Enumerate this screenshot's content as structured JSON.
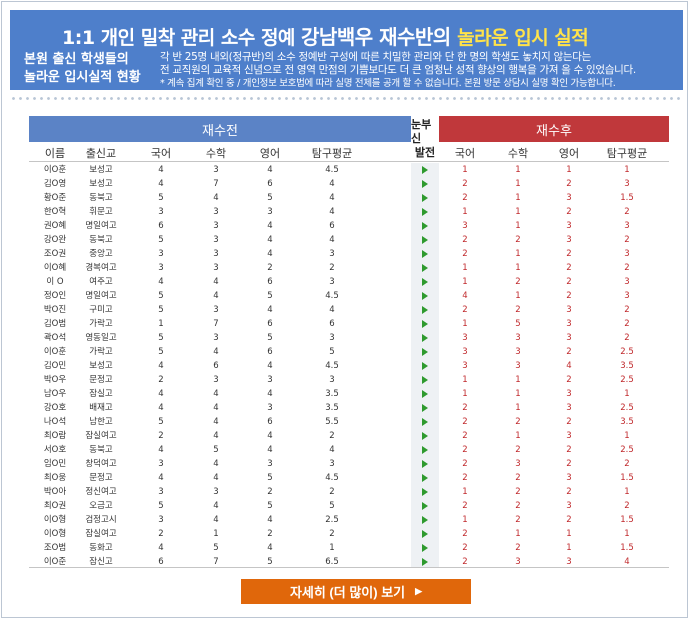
{
  "banner": {
    "title_prefix": "1:1 개인 밀착 관리 소수 정예 ",
    "title_brand": "강남백우 재수반의 ",
    "title_highlight": "놀라운 입시 실적",
    "subtitle_line1": "본원 출신 학생들의",
    "subtitle_line2": "놀라운 입시실적 현황",
    "desc_line1": "각 반 25명 내외(정규반)의 소수 정예반 구성에 따른 치밀한 관리와 단 한 명의 학생도 놓치지 않는다는",
    "desc_line2": "전 교직원의 교육적 신념으로 전 영역 만점의 기쁨보다도 더 큰 엄청난 성적 향상의 행복을 가져 올 수 있었습니다.",
    "desc_line3": "* 계속 집계 확인 중 / 개인정보 보호법에 따라 실명 전체를 공개 할 수 없습니다. 본원 방문 상담시 실명 확인 가능합니다."
  },
  "table": {
    "group_before": "재수전",
    "group_mid_line1": "눈부신",
    "group_mid_line2": "발전",
    "group_after": "재수후",
    "columns": [
      "이름",
      "출신교",
      "국어",
      "수학",
      "영어",
      "탐구평균",
      "국어",
      "수학",
      "영어",
      "탐구평균"
    ],
    "rows": [
      [
        "이O훈",
        "보성고",
        "4",
        "3",
        "4",
        "4.5",
        "1",
        "1",
        "1",
        "1"
      ],
      [
        "김O영",
        "보성고",
        "4",
        "7",
        "6",
        "4",
        "2",
        "1",
        "2",
        "3"
      ],
      [
        "황O준",
        "동북고",
        "5",
        "4",
        "5",
        "4",
        "2",
        "1",
        "3",
        "1.5"
      ],
      [
        "한O혁",
        "휘문고",
        "3",
        "3",
        "3",
        "4",
        "1",
        "1",
        "2",
        "2"
      ],
      [
        "권O혜",
        "명일여고",
        "6",
        "3",
        "4",
        "6",
        "3",
        "1",
        "3",
        "3"
      ],
      [
        "강O완",
        "동북고",
        "5",
        "3",
        "4",
        "4",
        "2",
        "2",
        "3",
        "2"
      ],
      [
        "조O권",
        "중앙고",
        "3",
        "3",
        "4",
        "3",
        "2",
        "1",
        "2",
        "3"
      ],
      [
        "이O혜",
        "경복여고",
        "3",
        "3",
        "2",
        "2",
        "1",
        "1",
        "2",
        "2"
      ],
      [
        "이 O",
        "여주고",
        "4",
        "4",
        "6",
        "3",
        "1",
        "2",
        "2",
        "3"
      ],
      [
        "정O인",
        "명일여고",
        "5",
        "4",
        "5",
        "4.5",
        "4",
        "1",
        "2",
        "3"
      ],
      [
        "박O진",
        "구미고",
        "5",
        "3",
        "4",
        "4",
        "2",
        "2",
        "3",
        "2"
      ],
      [
        "김O범",
        "가락고",
        "1",
        "7",
        "6",
        "6",
        "1",
        "5",
        "3",
        "2"
      ],
      [
        "곽O석",
        "영동일고",
        "5",
        "3",
        "5",
        "3",
        "3",
        "3",
        "3",
        "2"
      ],
      [
        "이O훈",
        "가락고",
        "5",
        "4",
        "6",
        "5",
        "3",
        "3",
        "2",
        "2.5"
      ],
      [
        "김O민",
        "보성고",
        "4",
        "6",
        "4",
        "4.5",
        "3",
        "3",
        "4",
        "3.5"
      ],
      [
        "박O우",
        "문정고",
        "2",
        "3",
        "3",
        "3",
        "1",
        "1",
        "2",
        "2.5"
      ],
      [
        "남O우",
        "잠실고",
        "4",
        "4",
        "4",
        "3.5",
        "1",
        "1",
        "3",
        "1"
      ],
      [
        "강O호",
        "배재고",
        "4",
        "4",
        "3",
        "3.5",
        "2",
        "1",
        "3",
        "2.5"
      ],
      [
        "나O석",
        "남한고",
        "5",
        "4",
        "6",
        "5.5",
        "2",
        "2",
        "2",
        "3.5"
      ],
      [
        "최O람",
        "잠실여고",
        "2",
        "4",
        "4",
        "2",
        "2",
        "1",
        "3",
        "1"
      ],
      [
        "서O호",
        "동북고",
        "4",
        "5",
        "4",
        "4",
        "2",
        "2",
        "2",
        "2.5"
      ],
      [
        "임O민",
        "창덕여고",
        "3",
        "4",
        "3",
        "3",
        "2",
        "3",
        "2",
        "2"
      ],
      [
        "최O웅",
        "문정고",
        "4",
        "4",
        "5",
        "4.5",
        "2",
        "2",
        "3",
        "1.5"
      ],
      [
        "박O아",
        "정신여고",
        "3",
        "3",
        "2",
        "2",
        "1",
        "2",
        "2",
        "1"
      ],
      [
        "최O권",
        "오금고",
        "5",
        "4",
        "5",
        "5",
        "2",
        "2",
        "3",
        "2"
      ],
      [
        "이O형",
        "검정고시",
        "3",
        "4",
        "4",
        "2.5",
        "1",
        "2",
        "2",
        "1.5"
      ],
      [
        "이O형",
        "잠실여고",
        "2",
        "1",
        "2",
        "2",
        "2",
        "1",
        "1",
        "1"
      ],
      [
        "조O범",
        "동화고",
        "4",
        "5",
        "4",
        "1",
        "2",
        "2",
        "1",
        "1.5"
      ],
      [
        "이O준",
        "잠신고",
        "6",
        "7",
        "5",
        "6.5",
        "2",
        "3",
        "3",
        "4"
      ]
    ]
  },
  "more_button": {
    "label": "자세히 (더 많이) 보기",
    "icon": "chevron-right-icon"
  },
  "colors": {
    "banner_bg": "#4e7fcb",
    "highlight": "#ffe34a",
    "before_header": "#5b83c6",
    "after_header": "#c0383b",
    "after_values": "#c0292c",
    "arrow": "#2e9a2e",
    "button": "#e0670b"
  }
}
